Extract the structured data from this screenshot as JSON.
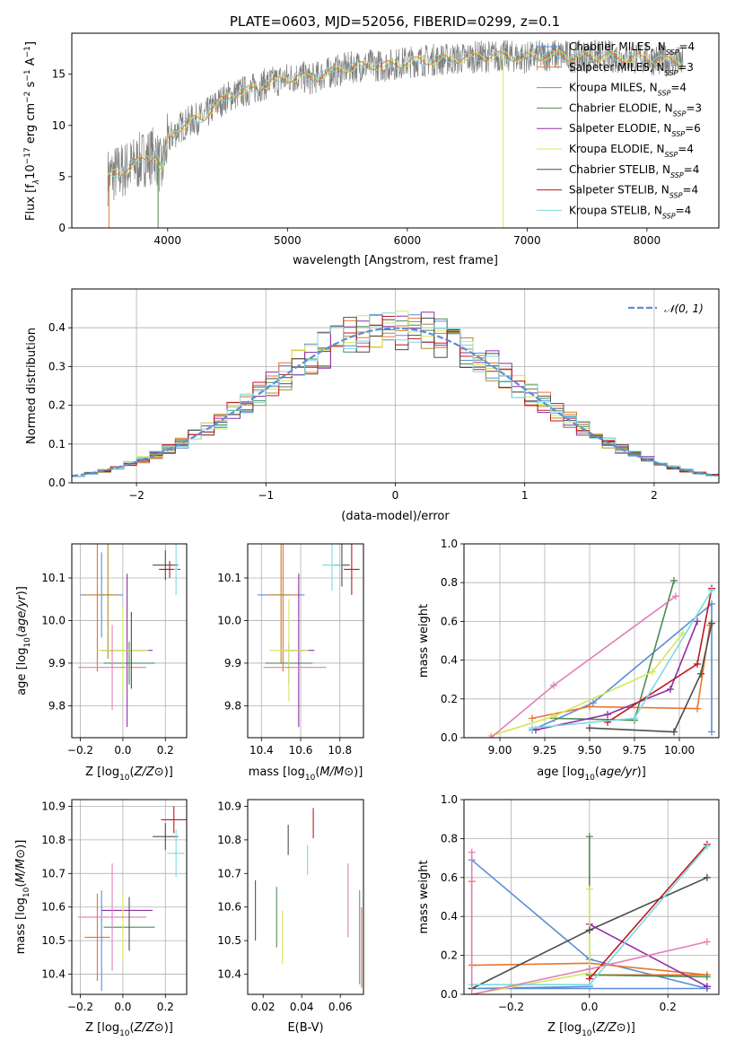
{
  "title": "PLATE=0603, MJD=52056, FIBERID=0299, z=0.1",
  "colors": {
    "chabrier_miles": "#5b8ed6",
    "salpeter_miles": "#e8772e",
    "kroupa_miles": "#b28a2e",
    "chabrier_elodie": "#4e8a56",
    "salpeter_elodie": "#8e2ea6",
    "kroupa_elodie": "#d4e85a",
    "chabrier_stelib": "#4d4d4d",
    "salpeter_stelib": "#c0181e",
    "kroupa_stelib": "#7fd9e2",
    "extra_pink": "#e27fb8",
    "spectrum": "#808080",
    "normal_curve": "#5b8ed6",
    "grid": "#b0b0b0"
  },
  "chart_data": [
    {
      "id": "spectrum",
      "type": "line",
      "title": "PLATE=0603, MJD=52056, FIBERID=0299, z=0.1",
      "xlabel": "wavelength [Angstrom, rest frame]",
      "ylabel_parts": [
        "Flux [f",
        "λ",
        "10",
        "−17",
        " erg cm",
        "−2",
        " s",
        "−1",
        " A",
        "−1",
        "]"
      ],
      "xlim": [
        3200,
        8600
      ],
      "ylim": [
        0,
        19
      ],
      "xticks": [
        4000,
        5000,
        6000,
        7000,
        8000
      ],
      "yticks": [
        0,
        5,
        10,
        15
      ],
      "grid": false,
      "legend_position": "upper-right",
      "legend": [
        {
          "key": "chabrier_miles",
          "label": "Chabrier MILES, N",
          "sub": "SSP",
          "value": "=4"
        },
        {
          "key": "salpeter_miles",
          "label": "Salpeter MILES, N",
          "sub": "SSP",
          "value": "=3"
        },
        {
          "key": "kroupa_miles",
          "label": "Kroupa MILES, N",
          "sub": "SSP",
          "value": "=4"
        },
        {
          "key": "chabrier_elodie",
          "label": "Chabrier ELODIE, N",
          "sub": "SSP",
          "value": "=3"
        },
        {
          "key": "salpeter_elodie",
          "label": "Salpeter ELODIE, N",
          "sub": "SSP",
          "value": "=6"
        },
        {
          "key": "kroupa_elodie",
          "label": "Kroupa ELODIE, N",
          "sub": "SSP",
          "value": "=4"
        },
        {
          "key": "chabrier_stelib",
          "label": "Chabrier STELIB, N",
          "sub": "SSP",
          "value": "=4"
        },
        {
          "key": "salpeter_stelib",
          "label": "Salpeter STELIB, N",
          "sub": "SSP",
          "value": "=4"
        },
        {
          "key": "kroupa_stelib",
          "label": "Kroupa STELIB, N",
          "sub": "SSP",
          "value": "=4"
        }
      ],
      "continuum": [
        [
          3500,
          5.0
        ],
        [
          3600,
          5.5
        ],
        [
          3700,
          6.0
        ],
        [
          3800,
          6.8
        ],
        [
          3900,
          7.2
        ],
        [
          3950,
          5.5
        ],
        [
          4000,
          8.5
        ],
        [
          4100,
          9.8
        ],
        [
          4200,
          10.5
        ],
        [
          4300,
          10.8
        ],
        [
          4400,
          12.0
        ],
        [
          4500,
          12.8
        ],
        [
          4600,
          13.2
        ],
        [
          4700,
          13.5
        ],
        [
          4800,
          14.0
        ],
        [
          4900,
          14.3
        ],
        [
          5000,
          14.6
        ],
        [
          5100,
          14.8
        ],
        [
          5200,
          14.5
        ],
        [
          5300,
          15.0
        ],
        [
          5400,
          15.3
        ],
        [
          5500,
          15.6
        ],
        [
          5600,
          15.8
        ],
        [
          5700,
          15.9
        ],
        [
          5800,
          15.8
        ],
        [
          5900,
          16.0
        ],
        [
          6000,
          16.2
        ],
        [
          6200,
          16.4
        ],
        [
          6400,
          16.5
        ],
        [
          6600,
          16.7
        ],
        [
          6800,
          16.8
        ],
        [
          7000,
          16.6
        ],
        [
          7200,
          16.9
        ],
        [
          7400,
          16.7
        ],
        [
          7600,
          16.8
        ],
        [
          7800,
          16.6
        ],
        [
          8000,
          16.5
        ],
        [
          8200,
          16.3
        ],
        [
          8300,
          16.1
        ]
      ],
      "noise_amplitude": 1.6,
      "model_spikes": [
        {
          "key": "salpeter_miles",
          "x": 3510,
          "to": 0
        },
        {
          "key": "chabrier_elodie",
          "x": 3920,
          "to": 0
        },
        {
          "key": "kroupa_elodie",
          "x": 6800,
          "to": 0
        },
        {
          "key": "salpeter_stelib",
          "x": 7420,
          "to": 0
        }
      ]
    },
    {
      "id": "residual-histogram",
      "type": "histogram",
      "xlabel": "(data-model)/error",
      "ylabel": "Normed distribution",
      "xlim": [
        -2.5,
        2.5
      ],
      "ylim": [
        0,
        0.5
      ],
      "xticks": [
        -2,
        -1,
        0,
        1,
        2
      ],
      "yticks": [
        0.0,
        0.1,
        0.2,
        0.3,
        0.4
      ],
      "grid": true,
      "legend_position": "upper-right",
      "legend": [
        {
          "label": "𝒩(0, 1)",
          "style": "dashed"
        }
      ],
      "bin_width": 0.1,
      "normal_pdf": {
        "mean": 0,
        "sigma": 1
      }
    },
    {
      "id": "age-vs-Z",
      "type": "errorbar",
      "xlabel": "Z [log10(Z/Z⊙)]",
      "ylabel": "age  [log10(age/yr)]",
      "xlim": [
        -0.24,
        0.3
      ],
      "ylim": [
        9.725,
        10.18
      ],
      "xticks": [
        -0.2,
        0.0,
        0.2
      ],
      "yticks": [
        9.8,
        9.9,
        10.0,
        10.1
      ],
      "grid": true,
      "points": [
        {
          "key": "chabrier_miles",
          "x": -0.1,
          "y": 10.06,
          "xerr": 0.1,
          "yerr": 0.1
        },
        {
          "key": "salpeter_miles",
          "x": -0.12,
          "y": 10.06,
          "xerr": 0.06,
          "yerr": 0.18
        },
        {
          "key": "kroupa_miles",
          "x": -0.07,
          "y": 10.06,
          "xerr": 0.05,
          "yerr": 0.15
        },
        {
          "key": "chabrier_elodie",
          "x": 0.03,
          "y": 9.9,
          "xerr": 0.12,
          "yerr": 0.05
        },
        {
          "key": "salpeter_elodie",
          "x": 0.02,
          "y": 9.93,
          "xerr": 0.12,
          "yerr": 0.18
        },
        {
          "key": "kroupa_elodie",
          "x": 0.0,
          "y": 9.93,
          "xerr": 0.12,
          "yerr": 0.1
        },
        {
          "key": "chabrier_stelib",
          "x": 0.2,
          "y": 10.13,
          "xerr": 0.06,
          "yerr": 0.035
        },
        {
          "key": "salpeter_stelib",
          "x": 0.22,
          "y": 10.12,
          "xerr": 0.05,
          "yerr": 0.02
        },
        {
          "key": "kroupa_stelib",
          "x": 0.25,
          "y": 10.12,
          "xerr": 0.01,
          "yerr": 0.06
        },
        {
          "key": "extra_pink",
          "x": -0.05,
          "y": 9.89,
          "xerr": 0.16,
          "yerr": 0.1
        },
        {
          "key": "chabrier_stelib",
          "x": 0.04,
          "y": 9.93,
          "xerr": 0.0,
          "yerr": 0.09
        }
      ]
    },
    {
      "id": "age-vs-mass",
      "type": "errorbar",
      "xlabel": "mass [log10(M/M⊙)]",
      "ylabel": "",
      "xlim": [
        10.33,
        10.92
      ],
      "ylim": [
        9.725,
        10.18
      ],
      "xticks": [
        10.4,
        10.6,
        10.8
      ],
      "yticks": [
        9.8,
        9.9,
        10.0,
        10.1
      ],
      "grid": true,
      "points": [
        {
          "key": "chabrier_miles",
          "x": 10.5,
          "y": 10.06,
          "xerr": 0.12,
          "yerr": 0.0
        },
        {
          "key": "salpeter_miles",
          "x": 10.51,
          "y": 10.06,
          "xerr": 0.08,
          "yerr": 0.18
        },
        {
          "key": "kroupa_miles",
          "x": 10.5,
          "y": 10.06,
          "xerr": 0.04,
          "yerr": 0.16
        },
        {
          "key": "chabrier_elodie",
          "x": 10.54,
          "y": 9.9,
          "xerr": 0.12,
          "yerr": 0.05
        },
        {
          "key": "salpeter_elodie",
          "x": 10.59,
          "y": 9.93,
          "xerr": 0.08,
          "yerr": 0.18
        },
        {
          "key": "kroupa_elodie",
          "x": 10.54,
          "y": 9.93,
          "xerr": 0.1,
          "yerr": 0.12
        },
        {
          "key": "chabrier_stelib",
          "x": 10.81,
          "y": 10.13,
          "xerr": 0.04,
          "yerr": 0.05
        },
        {
          "key": "salpeter_stelib",
          "x": 10.86,
          "y": 10.12,
          "xerr": 0.04,
          "yerr": 0.06
        },
        {
          "key": "kroupa_stelib",
          "x": 10.76,
          "y": 10.13,
          "xerr": 0.05,
          "yerr": 0.06
        },
        {
          "key": "extra_pink",
          "x": 10.57,
          "y": 9.89,
          "xerr": 0.16,
          "yerr": 0.0
        }
      ]
    },
    {
      "id": "weight-vs-age",
      "type": "line",
      "xlabel": "age  [log10(age/yr)]",
      "ylabel": "mass weight",
      "xlim": [
        8.8,
        10.22
      ],
      "ylim": [
        0,
        1
      ],
      "xticks": [
        9.0,
        9.25,
        9.5,
        9.75,
        10.0
      ],
      "yticks": [
        0.0,
        0.2,
        0.4,
        0.6,
        0.8,
        1.0
      ],
      "grid": true,
      "series": [
        {
          "key": "chabrier_miles",
          "x": [
            9.18,
            9.52,
            10.18,
            10.18
          ],
          "y": [
            0.04,
            0.18,
            0.69,
            0.03
          ]
        },
        {
          "key": "salpeter_miles",
          "x": [
            9.18,
            9.5,
            10.1,
            10.17
          ],
          "y": [
            0.1,
            0.16,
            0.15,
            0.58
          ]
        },
        {
          "key": "chabrier_elodie",
          "x": [
            9.3,
            9.75,
            9.97
          ],
          "y": [
            0.1,
            0.09,
            0.81
          ]
        },
        {
          "key": "salpeter_elodie",
          "x": [
            9.2,
            9.6,
            9.95,
            10.1
          ],
          "y": [
            0.04,
            0.12,
            0.25,
            0.6
          ]
        },
        {
          "key": "kroupa_elodie",
          "x": [
            8.95,
            9.3,
            9.85,
            10.02
          ],
          "y": [
            0.01,
            0.11,
            0.34,
            0.54
          ]
        },
        {
          "key": "chabrier_stelib",
          "x": [
            9.5,
            9.97,
            10.12,
            10.18
          ],
          "y": [
            0.05,
            0.03,
            0.33,
            0.59
          ]
        },
        {
          "key": "salpeter_stelib",
          "x": [
            9.6,
            10.1,
            10.18
          ],
          "y": [
            0.08,
            0.38,
            0.77
          ]
        },
        {
          "key": "kroupa_stelib",
          "x": [
            9.18,
            9.75,
            10.18
          ],
          "y": [
            0.05,
            0.1,
            0.76
          ]
        },
        {
          "key": "extra_pink",
          "x": [
            8.95,
            9.3,
            9.98
          ],
          "y": [
            0.0,
            0.27,
            0.73
          ]
        }
      ]
    },
    {
      "id": "mass-vs-Z",
      "type": "errorbar",
      "xlabel": "Z [log10(Z/Z⊙)]",
      "ylabel": "mass [log10(M/M⊙)]",
      "xlim": [
        -0.24,
        0.3
      ],
      "ylim": [
        10.34,
        10.92
      ],
      "xticks": [
        -0.2,
        0.0,
        0.2
      ],
      "yticks": [
        10.4,
        10.5,
        10.6,
        10.7,
        10.8,
        10.9
      ],
      "grid": true,
      "points": [
        {
          "key": "chabrier_miles",
          "x": -0.1,
          "y": 10.5,
          "xerr": 0.0,
          "yerr": 0.15
        },
        {
          "key": "salpeter_miles",
          "x": -0.12,
          "y": 10.51,
          "xerr": 0.06,
          "yerr": 0.13
        },
        {
          "key": "chabrier_elodie",
          "x": 0.03,
          "y": 10.54,
          "xerr": 0.12,
          "yerr": 0.0
        },
        {
          "key": "salpeter_elodie",
          "x": 0.02,
          "y": 10.59,
          "xerr": 0.12,
          "yerr": 0.0
        },
        {
          "key": "kroupa_elodie",
          "x": 0.0,
          "y": 10.54,
          "xerr": 0.0,
          "yerr": 0.1
        },
        {
          "key": "chabrier_stelib",
          "x": 0.2,
          "y": 10.81,
          "xerr": 0.06,
          "yerr": 0.04
        },
        {
          "key": "salpeter_stelib",
          "x": 0.24,
          "y": 10.86,
          "xerr": 0.06,
          "yerr": 0.04
        },
        {
          "key": "kroupa_stelib",
          "x": 0.25,
          "y": 10.76,
          "xerr": 0.04,
          "yerr": 0.07
        },
        {
          "key": "extra_pink",
          "x": -0.05,
          "y": 10.57,
          "xerr": 0.16,
          "yerr": 0.16
        },
        {
          "key": "chabrier_stelib",
          "x": 0.03,
          "y": 10.55,
          "xerr": 0.0,
          "yerr": 0.08
        },
        {
          "key": "chabrier_miles",
          "x": -0.08,
          "y": 10.5,
          "xerr": 0.0,
          "yerr": 0.0
        }
      ]
    },
    {
      "id": "mass-vs-ebv",
      "type": "errorbar",
      "xlabel": "E(B-V)",
      "ylabel": "",
      "xlim": [
        0.012,
        0.072
      ],
      "ylim": [
        10.34,
        10.92
      ],
      "xticks": [
        0.02,
        0.04,
        0.06
      ],
      "yticks": [
        10.4,
        10.5,
        10.6,
        10.7,
        10.8,
        10.9
      ],
      "grid": false,
      "points": [
        {
          "key": "salpeter_elodie",
          "x": 0.016,
          "y": 10.59,
          "xerr": 0.0,
          "yerr": 0.09
        },
        {
          "key": "chabrier_elodie",
          "x": 0.027,
          "y": 10.57,
          "xerr": 0.0,
          "yerr": 0.09
        },
        {
          "key": "kroupa_elodie",
          "x": 0.03,
          "y": 10.51,
          "xerr": 0.0,
          "yerr": 0.08
        },
        {
          "key": "chabrier_stelib",
          "x": 0.033,
          "y": 10.8,
          "xerr": 0.0,
          "yerr": 0.045
        },
        {
          "key": "kroupa_stelib",
          "x": 0.043,
          "y": 10.74,
          "xerr": 0.0,
          "yerr": 0.045
        },
        {
          "key": "salpeter_stelib",
          "x": 0.046,
          "y": 10.85,
          "xerr": 0.0,
          "yerr": 0.045
        },
        {
          "key": "extra_pink",
          "x": 0.064,
          "y": 10.62,
          "xerr": 0.0,
          "yerr": 0.11
        },
        {
          "key": "chabrier_miles",
          "x": 0.07,
          "y": 10.51,
          "xerr": 0.0,
          "yerr": 0.14
        },
        {
          "key": "salpeter_miles",
          "x": 0.071,
          "y": 10.48,
          "xerr": 0.0,
          "yerr": 0.12
        }
      ]
    },
    {
      "id": "weight-vs-Z",
      "type": "line",
      "xlabel": "Z [log10(Z/Z⊙)]",
      "ylabel": "mass weight",
      "xlim": [
        -0.32,
        0.33
      ],
      "ylim": [
        0,
        1
      ],
      "xticks": [
        -0.2,
        0.0,
        0.2
      ],
      "yticks": [
        0.0,
        0.2,
        0.4,
        0.6,
        0.8,
        1.0
      ],
      "grid": true,
      "series": [
        {
          "key": "chabrier_miles",
          "x": [
            -0.3,
            0.0,
            0.3,
            -0.3,
            0.0
          ],
          "y": [
            0.69,
            0.18,
            0.03,
            0.03,
            0.04
          ]
        },
        {
          "key": "salpeter_miles",
          "x": [
            -0.3,
            -0.3,
            0.0,
            0.3,
            0.0
          ],
          "y": [
            0.58,
            0.15,
            0.16,
            0.1,
            0.1
          ]
        },
        {
          "key": "chabrier_elodie",
          "x": [
            0.0,
            0.0,
            0.3
          ],
          "y": [
            0.81,
            0.1,
            0.09
          ]
        },
        {
          "key": "salpeter_elodie",
          "x": [
            0.0,
            0.3,
            0.3
          ],
          "y": [
            0.36,
            0.04,
            0.04
          ]
        },
        {
          "key": "kroupa_elodie",
          "x": [
            -0.3,
            0.0,
            0.0
          ],
          "y": [
            0.0,
            0.11,
            0.54
          ]
        },
        {
          "key": "chabrier_stelib",
          "x": [
            -0.3,
            0.0,
            0.3
          ],
          "y": [
            0.03,
            0.33,
            0.6
          ]
        },
        {
          "key": "salpeter_stelib",
          "x": [
            0.0,
            0.3
          ],
          "y": [
            0.08,
            0.77
          ]
        },
        {
          "key": "kroupa_stelib",
          "x": [
            -0.3,
            0.0,
            0.3
          ],
          "y": [
            0.05,
            0.05,
            0.76
          ]
        },
        {
          "key": "extra_pink",
          "x": [
            -0.3,
            -0.3,
            0.0,
            0.3
          ],
          "y": [
            0.73,
            0.0,
            0.13,
            0.27
          ]
        }
      ]
    }
  ]
}
